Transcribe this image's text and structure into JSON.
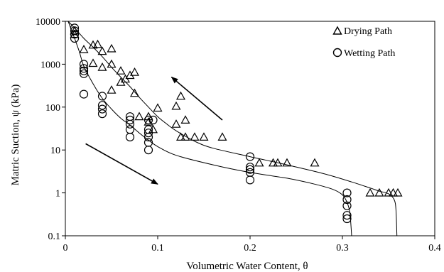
{
  "chart_data": {
    "type": "scatter",
    "title": "",
    "xlabel": "Volumetric Water Content, θ",
    "ylabel": "Matric Suction, ψ (kPa)",
    "xlim": [
      0,
      0.4
    ],
    "ylim": [
      0.1,
      10000
    ],
    "y_scale": "log",
    "x_ticks": [
      0,
      0.1,
      0.2,
      0.3,
      0.4
    ],
    "x_tick_labels": [
      "0",
      "0.1",
      "0.2",
      "0.3",
      "0.4"
    ],
    "y_ticks": [
      0.1,
      1,
      10,
      100,
      1000,
      10000
    ],
    "y_tick_labels": [
      "0.1",
      "1",
      "10",
      "100",
      "1000",
      "10000"
    ],
    "grid": false,
    "legend": {
      "position": "top-right"
    },
    "series": [
      {
        "name": "Drying Path",
        "marker": "triangle",
        "points": [
          [
            0.01,
            6000
          ],
          [
            0.01,
            5000
          ],
          [
            0.02,
            2200
          ],
          [
            0.03,
            2800
          ],
          [
            0.035,
            2900
          ],
          [
            0.04,
            2000
          ],
          [
            0.05,
            2300
          ],
          [
            0.03,
            1050
          ],
          [
            0.04,
            850
          ],
          [
            0.05,
            1000
          ],
          [
            0.06,
            700
          ],
          [
            0.065,
            450
          ],
          [
            0.07,
            550
          ],
          [
            0.075,
            650
          ],
          [
            0.06,
            380
          ],
          [
            0.05,
            250
          ],
          [
            0.075,
            210
          ],
          [
            0.1,
            95
          ],
          [
            0.125,
            180
          ],
          [
            0.12,
            105
          ],
          [
            0.08,
            60
          ],
          [
            0.09,
            60
          ],
          [
            0.09,
            45
          ],
          [
            0.095,
            30
          ],
          [
            0.13,
            50
          ],
          [
            0.12,
            40
          ],
          [
            0.125,
            20
          ],
          [
            0.13,
            20
          ],
          [
            0.14,
            20
          ],
          [
            0.15,
            20
          ],
          [
            0.17,
            20
          ],
          [
            0.21,
            5
          ],
          [
            0.225,
            5
          ],
          [
            0.23,
            5
          ],
          [
            0.24,
            5
          ],
          [
            0.27,
            5
          ],
          [
            0.33,
            1
          ],
          [
            0.34,
            1
          ],
          [
            0.35,
            1
          ],
          [
            0.355,
            1
          ],
          [
            0.36,
            1
          ]
        ]
      },
      {
        "name": "Wetting Path",
        "marker": "circle",
        "points": [
          [
            0.01,
            7000
          ],
          [
            0.01,
            6000
          ],
          [
            0.01,
            5000
          ],
          [
            0.01,
            4000
          ],
          [
            0.02,
            1000
          ],
          [
            0.02,
            800
          ],
          [
            0.02,
            700
          ],
          [
            0.02,
            600
          ],
          [
            0.02,
            200
          ],
          [
            0.04,
            180
          ],
          [
            0.04,
            110
          ],
          [
            0.04,
            90
          ],
          [
            0.04,
            70
          ],
          [
            0.07,
            60
          ],
          [
            0.07,
            50
          ],
          [
            0.07,
            40
          ],
          [
            0.07,
            30
          ],
          [
            0.07,
            20
          ],
          [
            0.09,
            50
          ],
          [
            0.09,
            30
          ],
          [
            0.09,
            25
          ],
          [
            0.09,
            20
          ],
          [
            0.09,
            15
          ],
          [
            0.09,
            10
          ],
          [
            0.095,
            50
          ],
          [
            0.2,
            7
          ],
          [
            0.2,
            4
          ],
          [
            0.2,
            3.5
          ],
          [
            0.2,
            3
          ],
          [
            0.2,
            2
          ],
          [
            0.305,
            1
          ],
          [
            0.305,
            0.7
          ],
          [
            0.305,
            0.5
          ],
          [
            0.305,
            0.3
          ],
          [
            0.305,
            0.25
          ]
        ]
      }
    ],
    "fitted_curves": [
      {
        "for": "Drying Path",
        "points": [
          [
            0.003,
            10000
          ],
          [
            0.01,
            7000
          ],
          [
            0.02,
            4000
          ],
          [
            0.03,
            2500
          ],
          [
            0.04,
            1500
          ],
          [
            0.05,
            850
          ],
          [
            0.06,
            500
          ],
          [
            0.07,
            300
          ],
          [
            0.08,
            170
          ],
          [
            0.09,
            100
          ],
          [
            0.1,
            60
          ],
          [
            0.11,
            40
          ],
          [
            0.12,
            28
          ],
          [
            0.14,
            16
          ],
          [
            0.16,
            11
          ],
          [
            0.2,
            7
          ],
          [
            0.24,
            4.5
          ],
          [
            0.28,
            2.8
          ],
          [
            0.31,
            1.8
          ],
          [
            0.33,
            1.3
          ],
          [
            0.34,
            1.1
          ],
          [
            0.35,
            0.95
          ],
          [
            0.356,
            0.7
          ],
          [
            0.358,
            0.4
          ],
          [
            0.359,
            0.1
          ]
        ]
      },
      {
        "for": "Wetting Path",
        "points": [
          [
            0.003,
            10000
          ],
          [
            0.01,
            4000
          ],
          [
            0.015,
            2000
          ],
          [
            0.02,
            900
          ],
          [
            0.03,
            350
          ],
          [
            0.04,
            160
          ],
          [
            0.05,
            90
          ],
          [
            0.06,
            55
          ],
          [
            0.07,
            38
          ],
          [
            0.08,
            25
          ],
          [
            0.09,
            17
          ],
          [
            0.1,
            12
          ],
          [
            0.12,
            7.5
          ],
          [
            0.16,
            4.5
          ],
          [
            0.2,
            3
          ],
          [
            0.24,
            2.2
          ],
          [
            0.27,
            1.6
          ],
          [
            0.29,
            1.2
          ],
          [
            0.3,
            0.9
          ],
          [
            0.305,
            0.6
          ],
          [
            0.308,
            0.35
          ],
          [
            0.31,
            0.1
          ]
        ]
      }
    ],
    "annotations": [
      {
        "type": "arrow",
        "from": [
          0.17,
          50
        ],
        "to": [
          0.115,
          500
        ]
      },
      {
        "type": "arrow",
        "from": [
          0.022,
          14
        ],
        "to": [
          0.1,
          1.6
        ]
      }
    ]
  }
}
